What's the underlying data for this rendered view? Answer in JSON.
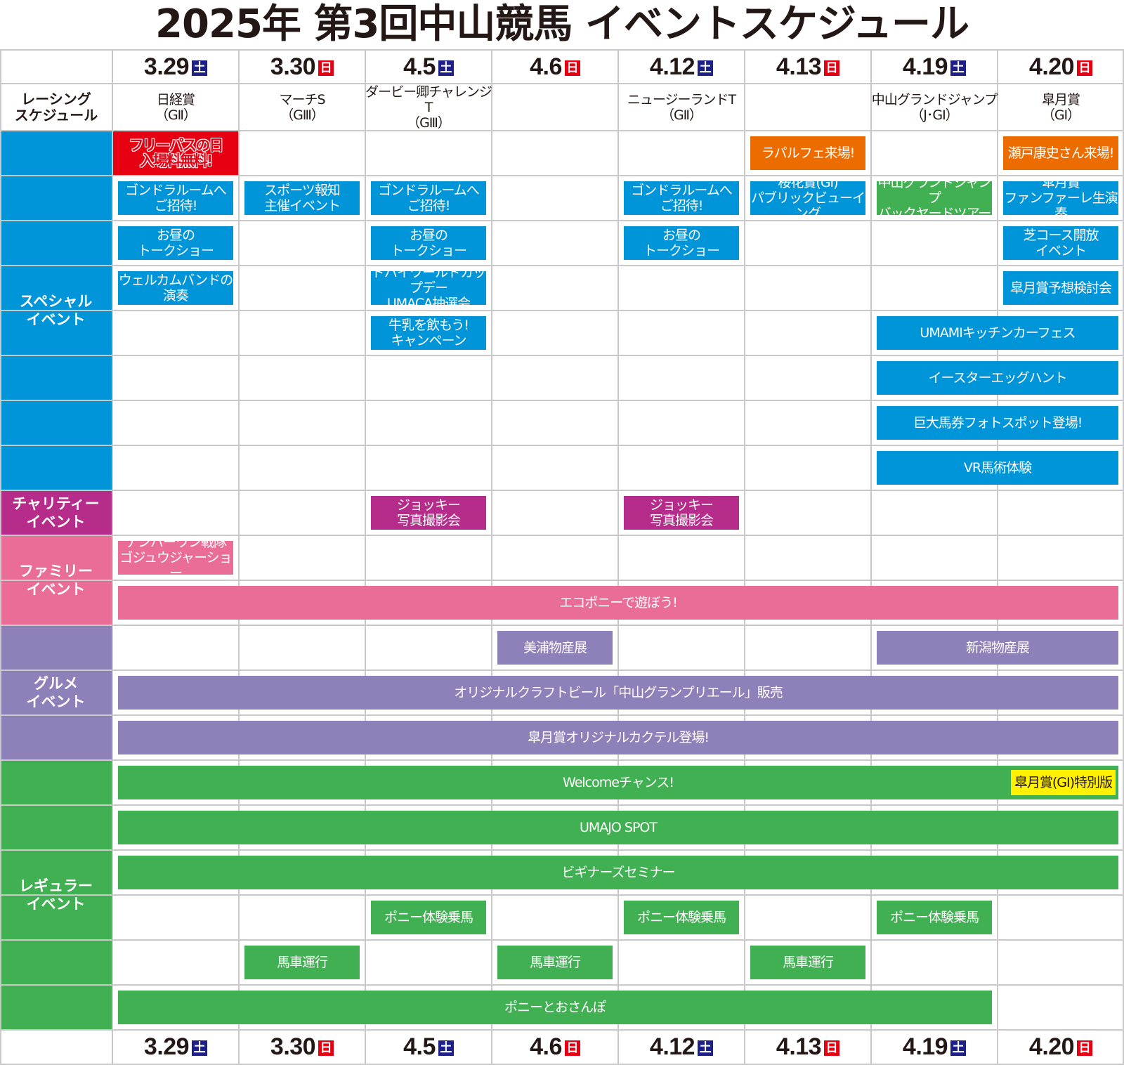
{
  "title": "2025年 第3回中山競馬 イベントスケジュール",
  "corner_label": "レーシング\nスケジュール",
  "colors": {
    "blue": "#0095d9",
    "red": "#e60012",
    "orange": "#ec6c00",
    "charity": "#b52c8a",
    "pink": "#e96d96",
    "purple": "#8e80b9",
    "green": "#41b052",
    "yellow": "#fff100",
    "saturday": "#1d2088",
    "sunday": "#e60012"
  },
  "dates": [
    {
      "date": "3.29",
      "dow": "土"
    },
    {
      "date": "3.30",
      "dow": "日"
    },
    {
      "date": "4.5",
      "dow": "土"
    },
    {
      "date": "4.6",
      "dow": "日"
    },
    {
      "date": "4.12",
      "dow": "土"
    },
    {
      "date": "4.13",
      "dow": "日"
    },
    {
      "date": "4.19",
      "dow": "土"
    },
    {
      "date": "4.20",
      "dow": "日"
    }
  ],
  "races": [
    {
      "name": "日経賞",
      "grade": "（GⅡ）"
    },
    {
      "name": "マーチS",
      "grade": "（GⅢ）"
    },
    {
      "name": "ダービー卿チャレンジT",
      "grade": "（GⅢ）"
    },
    {
      "name": "",
      "grade": ""
    },
    {
      "name": "ニュージーランドT",
      "grade": "（GⅡ）"
    },
    {
      "name": "",
      "grade": ""
    },
    {
      "name": "中山グランドジャンプ",
      "grade": "（J･GI）"
    },
    {
      "name": "皐月賞",
      "grade": "（GI）"
    }
  ],
  "sections": [
    {
      "label": "スペシャル\nイベント",
      "color": "blue",
      "rows": [
        [
          {
            "text": "フリーパスの日\n入場料無料!",
            "from": "3.29",
            "to": "3.29",
            "color": "red",
            "style": "full"
          },
          {
            "text": "ラパルフェ来場!",
            "from": "4.13",
            "to": "4.13",
            "color": "orange"
          },
          {
            "text": "瀬戸康史さん来場!",
            "from": "4.20",
            "to": "4.20",
            "color": "orange"
          }
        ],
        [
          {
            "text": "ゴンドラルームへ\nご招待!",
            "from": "3.29",
            "to": "3.29",
            "color": "blue"
          },
          {
            "text": "スポーツ報知\n主催イベント",
            "from": "3.30",
            "to": "3.30",
            "color": "blue"
          },
          {
            "text": "ゴンドラルームへ\nご招待!",
            "from": "4.5",
            "to": "4.5",
            "color": "blue"
          },
          {
            "text": "ゴンドラルームへ\nご招待!",
            "from": "4.12",
            "to": "4.12",
            "color": "blue"
          },
          {
            "text": "桜花賞(GI)\nパブリックビューイング",
            "from": "4.13",
            "to": "4.13",
            "color": "blue"
          },
          {
            "text": "中山グランドジャンプ\nバックヤードツアー",
            "from": "4.19",
            "to": "4.19",
            "color": "green"
          },
          {
            "text": "皐月賞\nファンファーレ生演奏",
            "from": "4.20",
            "to": "4.20",
            "color": "blue"
          }
        ],
        [
          {
            "text": "お昼の\nトークショー",
            "from": "3.29",
            "to": "3.29",
            "color": "blue"
          },
          {
            "text": "お昼の\nトークショー",
            "from": "4.5",
            "to": "4.5",
            "color": "blue"
          },
          {
            "text": "お昼の\nトークショー",
            "from": "4.12",
            "to": "4.12",
            "color": "blue"
          },
          {
            "text": "芝コース開放\nイベント",
            "from": "4.20",
            "to": "4.20",
            "color": "blue"
          }
        ],
        [
          {
            "text": "ウェルカムバンドの\n演奏",
            "from": "3.29",
            "to": "3.29",
            "color": "blue"
          },
          {
            "text": "ドバイワールドカップデー\nUMACA抽選会",
            "from": "4.5",
            "to": "4.5",
            "color": "blue"
          },
          {
            "text": "皐月賞予想検討会",
            "from": "4.20",
            "to": "4.20",
            "color": "blue"
          }
        ],
        [
          {
            "text": "牛乳を飲もう!\nキャンペーン",
            "from": "4.5",
            "to": "4.5",
            "color": "blue"
          },
          {
            "text": "UMAMIキッチンカーフェス",
            "from": "4.19",
            "to": "4.20",
            "color": "blue"
          }
        ],
        [
          {
            "text": "イースターエッグハント",
            "from": "4.19",
            "to": "4.20",
            "color": "blue"
          }
        ],
        [
          {
            "text": "巨大馬券フォトスポット登場!",
            "from": "4.19",
            "to": "4.20",
            "color": "blue"
          }
        ],
        [
          {
            "text": "VR馬術体験",
            "from": "4.19",
            "to": "4.20",
            "color": "blue"
          }
        ]
      ]
    },
    {
      "label": "チャリティー\nイベント",
      "color": "charity",
      "rows": [
        [
          {
            "text": "ジョッキー\n写真撮影会",
            "from": "4.5",
            "to": "4.5",
            "color": "charity"
          },
          {
            "text": "ジョッキー\n写真撮影会",
            "from": "4.12",
            "to": "4.12",
            "color": "charity"
          }
        ]
      ]
    },
    {
      "label": "ファミリー\nイベント",
      "color": "pink",
      "rows": [
        [
          {
            "text": "ナンバーワン戦隊\nゴジュウジャーショー",
            "from": "3.29",
            "to": "3.29",
            "color": "pink"
          }
        ],
        [
          {
            "text": "エコポニーで遊ぼう!",
            "from": "3.29",
            "to": "4.20",
            "color": "pink"
          }
        ]
      ]
    },
    {
      "label": "グルメ\nイベント",
      "color": "purple",
      "rows": [
        [
          {
            "text": "美浦物産展",
            "from": "4.6",
            "to": "4.6",
            "color": "purple"
          },
          {
            "text": "新潟物産展",
            "from": "4.19",
            "to": "4.20",
            "color": "purple"
          }
        ],
        [
          {
            "text": "オリジナルクラフトビール「中山グランプリエール」販売",
            "from": "3.29",
            "to": "4.20",
            "color": "purple"
          }
        ],
        [
          {
            "text": "皐月賞オリジナルカクテル登場!",
            "from": "3.29",
            "to": "4.20",
            "color": "purple"
          }
        ]
      ]
    },
    {
      "label": "レギュラー\nイベント",
      "color": "green",
      "rows": [
        [
          {
            "text": "Welcomeチャンス!",
            "from": "3.29",
            "to": "4.20",
            "color": "green",
            "badge": "皐月賞(GI)特別版"
          }
        ],
        [
          {
            "text": "UMAJO SPOT",
            "from": "3.29",
            "to": "4.20",
            "color": "green"
          }
        ],
        [
          {
            "text": "ビギナーズセミナー",
            "from": "3.29",
            "to": "4.20",
            "color": "green"
          }
        ],
        [
          {
            "text": "ポニー体験乗馬",
            "from": "4.5",
            "to": "4.5",
            "color": "green"
          },
          {
            "text": "ポニー体験乗馬",
            "from": "4.12",
            "to": "4.12",
            "color": "green"
          },
          {
            "text": "ポニー体験乗馬",
            "from": "4.19",
            "to": "4.19",
            "color": "green"
          }
        ],
        [
          {
            "text": "馬車運行",
            "from": "3.30",
            "to": "3.30",
            "color": "green"
          },
          {
            "text": "馬車運行",
            "from": "4.6",
            "to": "4.6",
            "color": "green"
          },
          {
            "text": "馬車運行",
            "from": "4.13",
            "to": "4.13",
            "color": "green"
          }
        ],
        [
          {
            "text": "ポニーとおさんぽ",
            "from": "3.29",
            "to": "4.19",
            "color": "green"
          }
        ]
      ]
    }
  ]
}
